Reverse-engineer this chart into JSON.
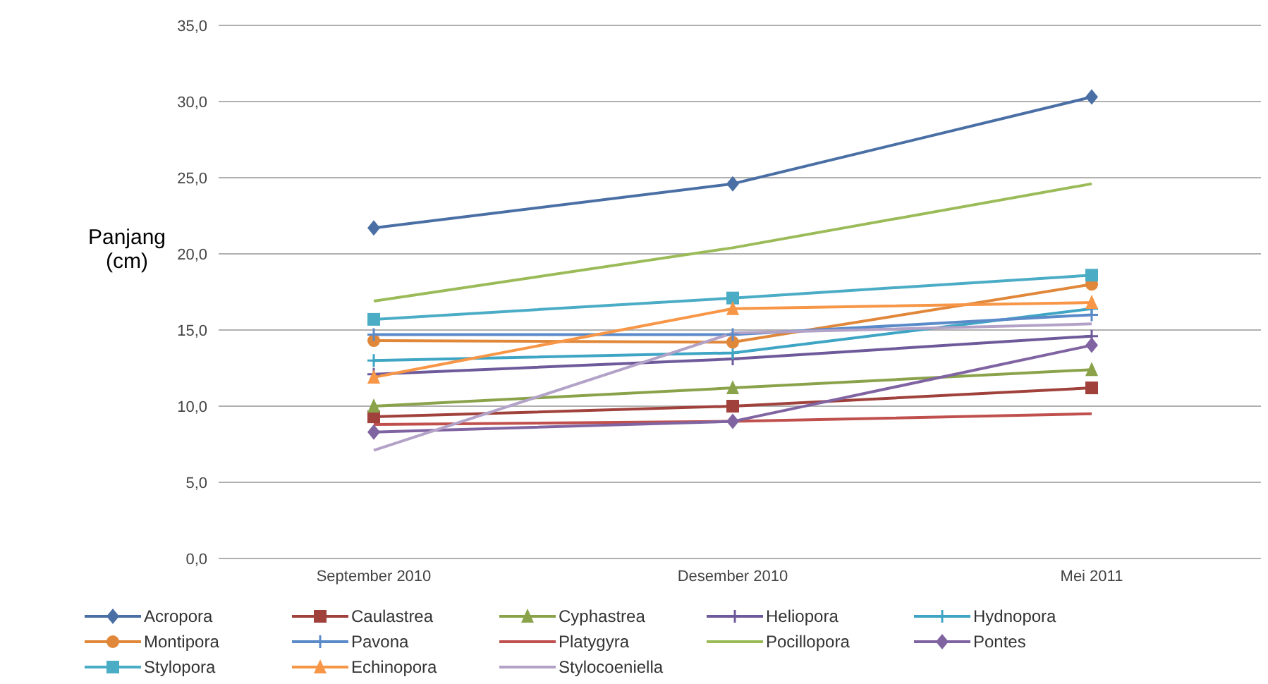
{
  "chart_data": {
    "type": "line",
    "ylabel": "Panjang (cm)",
    "categories": [
      "September 2010",
      "Desember 2010",
      "Mei 2011"
    ],
    "ylim": [
      0,
      35
    ],
    "yticks": [
      {
        "value": 0,
        "label": "0,0"
      },
      {
        "value": 5,
        "label": "5,0"
      },
      {
        "value": 10,
        "label": "10,0"
      },
      {
        "value": 15,
        "label": "15,0"
      },
      {
        "value": 20,
        "label": "20,0"
      },
      {
        "value": 25,
        "label": "25,0"
      },
      {
        "value": 30,
        "label": "30,0"
      },
      {
        "value": 35,
        "label": "35,0"
      }
    ],
    "grid": "y",
    "legend": "bottom",
    "series": [
      {
        "name": "Acropora",
        "color": "#4a6fa5",
        "marker": "diamond",
        "values": [
          21.7,
          24.6,
          30.3
        ]
      },
      {
        "name": "Caulastrea",
        "color": "#a0413c",
        "marker": "square",
        "values": [
          9.3,
          10.0,
          11.2
        ]
      },
      {
        "name": "Cyphastrea",
        "color": "#8aa34a",
        "marker": "triangle",
        "values": [
          10.0,
          11.2,
          12.4
        ]
      },
      {
        "name": "Heliopora",
        "color": "#6e5a9a",
        "marker": "cross",
        "values": [
          12.1,
          13.1,
          14.6
        ]
      },
      {
        "name": "Hydnopora",
        "color": "#3fa5c4",
        "marker": "cross",
        "values": [
          13.0,
          13.5,
          16.4
        ]
      },
      {
        "name": "Montipora",
        "color": "#e0873a",
        "marker": "circle",
        "values": [
          14.3,
          14.2,
          18.0
        ]
      },
      {
        "name": "Pavona",
        "color": "#5b8ac9",
        "marker": "cross",
        "values": [
          14.7,
          14.7,
          16.0
        ]
      },
      {
        "name": "Platygyra",
        "color": "#c0504d",
        "marker": "none",
        "values": [
          8.8,
          9.0,
          9.5
        ]
      },
      {
        "name": "Pocillopora",
        "color": "#9bbb59",
        "marker": "none",
        "values": [
          16.9,
          20.4,
          24.6
        ]
      },
      {
        "name": "Pontes",
        "color": "#8064a2",
        "marker": "diamond",
        "values": [
          8.3,
          9.0,
          14.0
        ]
      },
      {
        "name": "Stylopora",
        "color": "#4bacc6",
        "marker": "square",
        "values": [
          15.7,
          17.1,
          18.6
        ]
      },
      {
        "name": "Echinopora",
        "color": "#f79646",
        "marker": "triangle",
        "values": [
          11.9,
          16.4,
          16.8
        ]
      },
      {
        "name": "Stylocoeniella",
        "color": "#b3a2c7",
        "marker": "none",
        "values": [
          7.1,
          14.8,
          15.4
        ]
      }
    ]
  }
}
